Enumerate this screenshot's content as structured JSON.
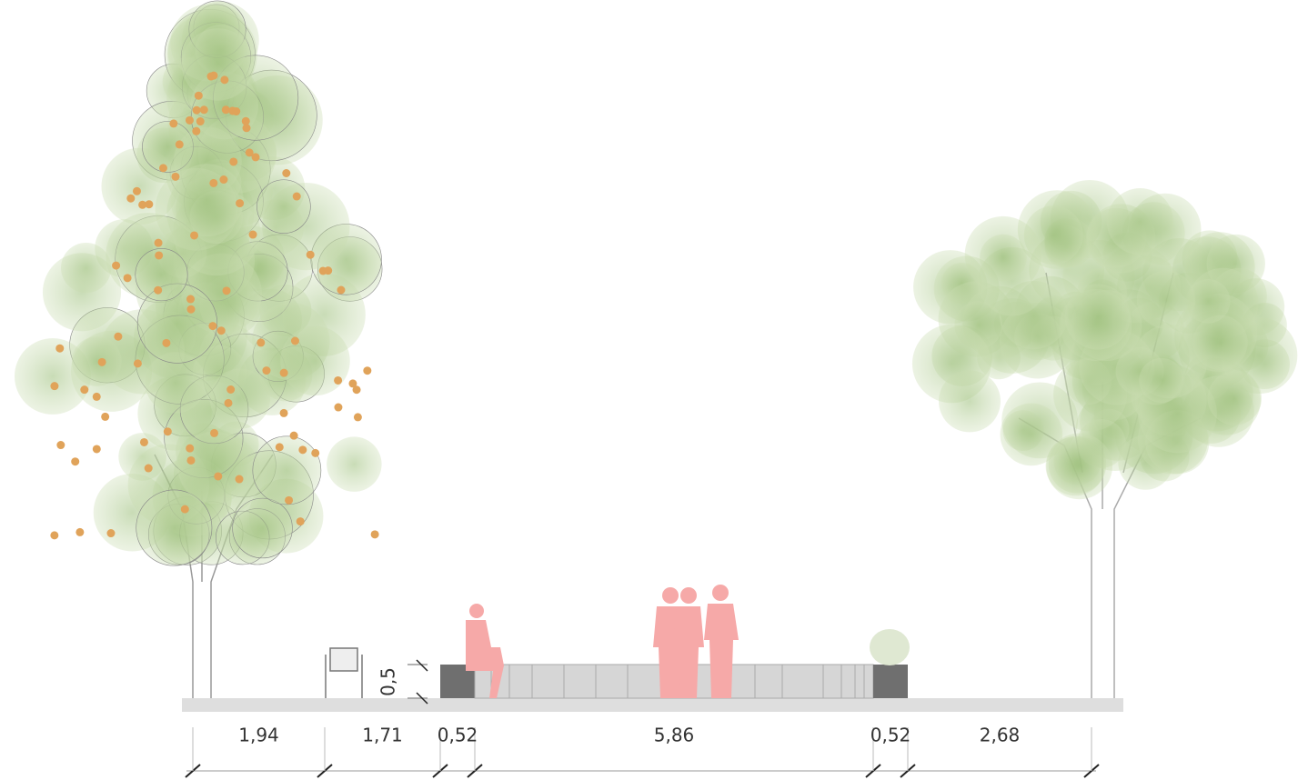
{
  "dimensions": [
    "1,94",
    "1,71",
    "0,52",
    "5,86",
    "0,52",
    "2,68"
  ],
  "height_label": "0,5"
}
